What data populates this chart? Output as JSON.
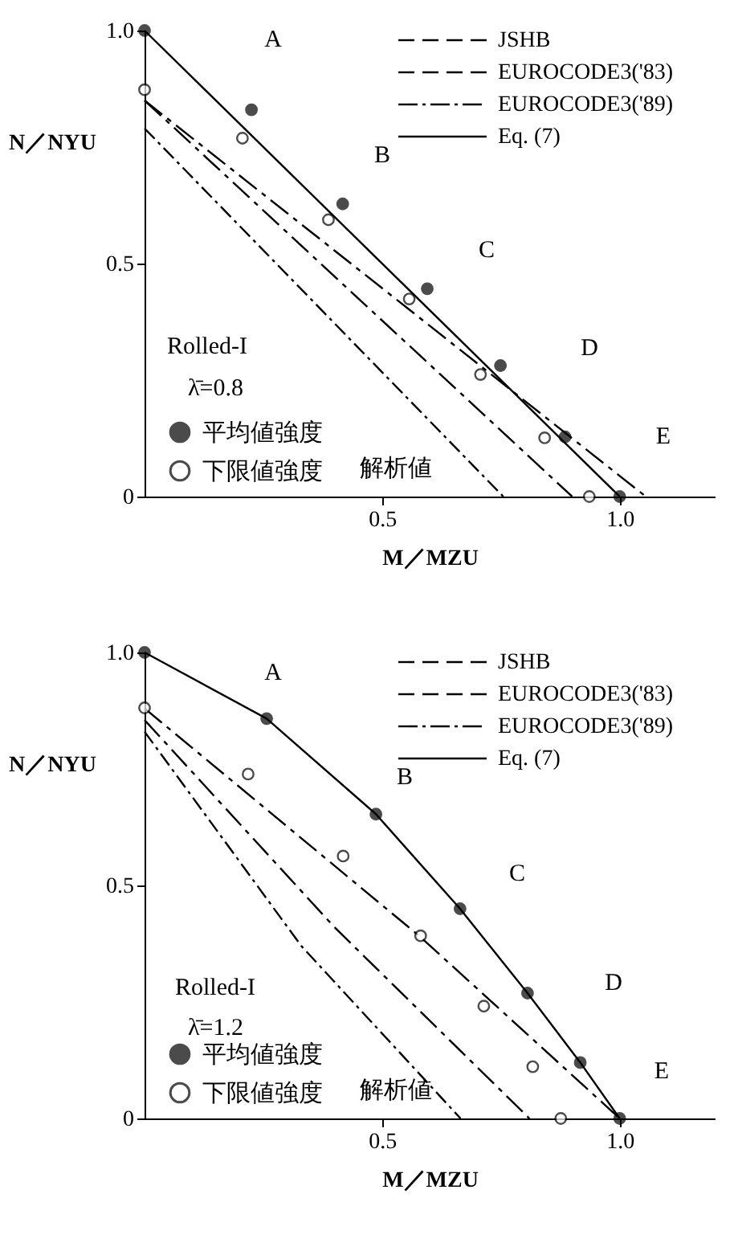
{
  "chart_data": [
    {
      "type": "line",
      "xlabel": "M／MZU",
      "ylabel": "N／NYU",
      "xlim": [
        0,
        1.2
      ],
      "ylim": [
        0,
        1.0
      ],
      "xticks": [
        0.5,
        {
          "value": 1,
          "label": "1.0"
        }
      ],
      "yticks": [
        0,
        0.5,
        {
          "value": 1,
          "label": "1.0"
        }
      ],
      "legend": "top right",
      "grid": false,
      "series": [
        {
          "name": "JSHB",
          "color": "#000000",
          "line_style": "dashed",
          "x": [
            0,
            0.9
          ],
          "values": [
            0.85,
            0
          ]
        },
        {
          "name": "EUROCODE3('83)",
          "color": "#000000",
          "line_style": "dashed",
          "x": [
            0,
            1.055
          ],
          "values": [
            0.85,
            0
          ]
        },
        {
          "name": "EUROCODE3('89)",
          "color": "#000000",
          "line_style": "dotted",
          "x": [
            0,
            0.755
          ],
          "values": [
            0.79,
            0
          ]
        },
        {
          "name": "Eq. (7)",
          "color": "#000000",
          "line_style": "solid",
          "x": [
            0,
            1.0
          ],
          "values": [
            1.0,
            0
          ]
        },
        {
          "name": "平均値強度",
          "type": "scatter",
          "color": "#000000",
          "marker": "circle",
          "x": [
            0,
            0.225,
            0.417,
            0.595,
            0.749,
            0.885,
            1.0
          ],
          "values": [
            1.0,
            0.83,
            0.628,
            0.446,
            0.281,
            0.128,
            0
          ]
        },
        {
          "name": "下限値強度",
          "type": "scatter",
          "color": "#ffffff",
          "marker": "circle",
          "x": [
            0,
            0.206,
            0.387,
            0.557,
            0.707,
            0.842,
            0.936
          ],
          "values": [
            0.873,
            0.769,
            0.594,
            0.424,
            0.262,
            0.126,
            0
          ]
        }
      ],
      "annotations": [
        "Rolled-I",
        "λ̄=0.8",
        "解析値",
        "A",
        "B",
        "C",
        "D",
        "E"
      ]
    },
    {
      "type": "line",
      "xlabel": "M／MZU",
      "ylabel": "N／NYU",
      "xlim": [
        0,
        1.2
      ],
      "ylim": [
        0,
        1.0
      ],
      "xticks": [
        0.5,
        {
          "value": 1,
          "label": "1.0"
        }
      ],
      "yticks": [
        0,
        0.5,
        {
          "value": 1,
          "label": "1.0"
        }
      ],
      "legend": "top right",
      "grid": false,
      "series": [
        {
          "name": "JSHB",
          "color": "#000000",
          "line_style": "dashed",
          "x": [
            0,
            0.4,
            0.81
          ],
          "values": [
            0.855,
            0.41,
            0
          ]
        },
        {
          "name": "EUROCODE3('83)",
          "color": "#000000",
          "line_style": "dashed",
          "x": [
            0,
            0.58,
            1.0
          ],
          "values": [
            0.88,
            0.39,
            0
          ]
        },
        {
          "name": "EUROCODE3('89)",
          "color": "#000000",
          "line_style": "dotted",
          "x": [
            0,
            0.33,
            0.665
          ],
          "values": [
            0.83,
            0.37,
            0
          ]
        },
        {
          "name": "Eq. (7)",
          "color": "#000000",
          "line_style": "solid",
          "x": [
            0,
            0.257,
            0.487,
            0.664,
            0.806,
            0.917,
            1.0
          ],
          "values": [
            1.0,
            0.858,
            0.653,
            0.45,
            0.269,
            0.12,
            0
          ]
        },
        {
          "name": "平均値強度",
          "type": "scatter",
          "color": "#000000",
          "marker": "circle",
          "x": [
            0,
            0.257,
            0.487,
            0.664,
            0.806,
            0.917,
            1.0
          ],
          "values": [
            1.0,
            0.858,
            0.653,
            0.45,
            0.269,
            0.12,
            0
          ]
        },
        {
          "name": "下限値強度",
          "type": "scatter",
          "color": "#ffffff",
          "marker": "circle",
          "x": [
            0,
            0.218,
            0.418,
            0.581,
            0.714,
            0.817,
            0.876
          ],
          "values": [
            0.881,
            0.739,
            0.563,
            0.392,
            0.241,
            0.111,
            0
          ]
        }
      ],
      "annotations": [
        "Rolled-I",
        "λ̄=1.2",
        "解析値",
        "A",
        "B",
        "C",
        "D",
        "E"
      ]
    }
  ]
}
